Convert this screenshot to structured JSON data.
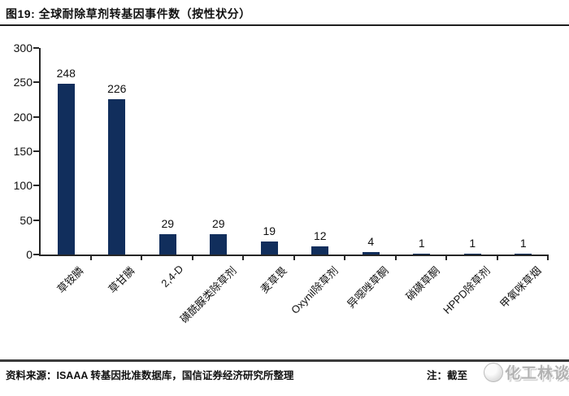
{
  "figure": {
    "title": "图19: 全球耐除草剂转基因事件数（按性状分）"
  },
  "chart_data": {
    "type": "bar",
    "title": "全球耐除草剂转基因事件数（按性状分）",
    "categories": [
      "草铵膦",
      "草甘膦",
      "2,4-D",
      "磺酰脲类除草剂",
      "麦草畏",
      "Oxynil除草剂",
      "异噁唑草酮",
      "硝磺草酮",
      "HPPD除草剂",
      "甲氧咪草烟"
    ],
    "values": [
      248,
      226,
      29,
      29,
      19,
      12,
      4,
      1,
      1,
      1
    ],
    "data_labels": [
      248,
      226,
      29,
      29,
      19,
      12,
      4,
      1,
      1,
      1
    ],
    "xlabel": "",
    "ylabel": "",
    "ylim": [
      0,
      300
    ],
    "y_ticks": [
      0,
      50,
      100,
      150,
      200,
      250,
      300
    ],
    "grid": false,
    "legend": "none",
    "bar_color": "#112e5c"
  },
  "footer": {
    "source": "资料来源：ISAAA 转基因批准数据库，国信证券经济研究所整理",
    "note_label": "注：",
    "note_text": "截至",
    "watermark_text": "化工林谈"
  },
  "colors": {
    "bar": "#112e5c",
    "axis": "#262626",
    "rule": "#1f1f1f",
    "text": "#111111",
    "watermark": "#a6a6a6"
  }
}
